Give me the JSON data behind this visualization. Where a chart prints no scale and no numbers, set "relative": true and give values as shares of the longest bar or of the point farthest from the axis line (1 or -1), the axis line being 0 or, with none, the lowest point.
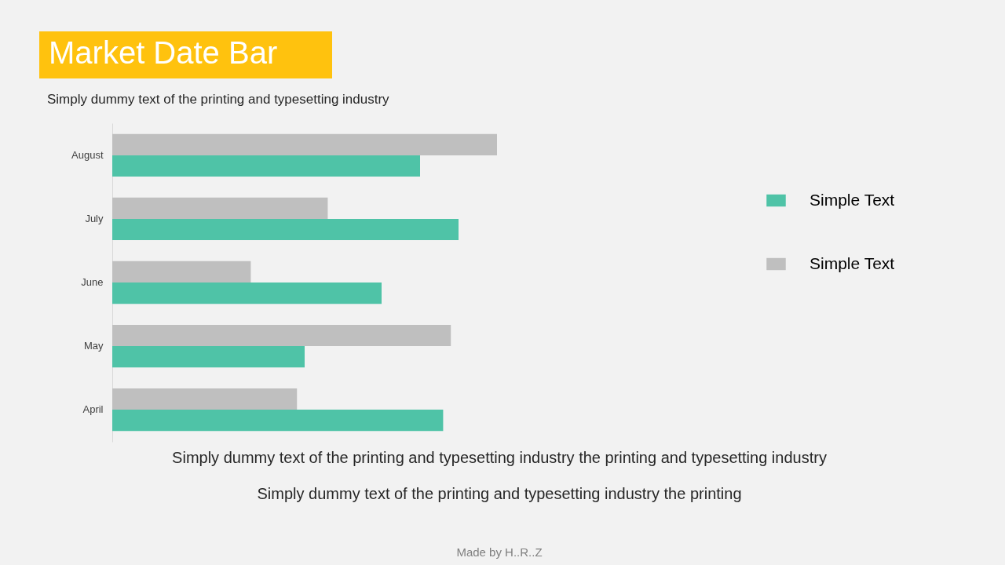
{
  "chart_data": {
    "type": "bar",
    "orientation": "horizontal",
    "relative": true,
    "title": "Market Date Bar",
    "subtitle": "Simply dummy text of the printing and typesetting industry",
    "categories": [
      "August",
      "July",
      "June",
      "May",
      "April"
    ],
    "series": [
      {
        "name": "Simple Text",
        "color": "#4fc3a7",
        "values": [
          0.8,
          0.9,
          0.7,
          0.5,
          0.86
        ]
      },
      {
        "name": "Simple Text",
        "color": "#bfbfbf",
        "values": [
          1.0,
          0.56,
          0.36,
          0.88,
          0.48
        ]
      }
    ],
    "legend": "right",
    "annotations": [
      "Simply dummy text of the printing and typesetting industry the printing and typesetting industry",
      "Simply dummy text of the printing and typesetting industry the printing",
      "Made by H..R..Z"
    ]
  }
}
